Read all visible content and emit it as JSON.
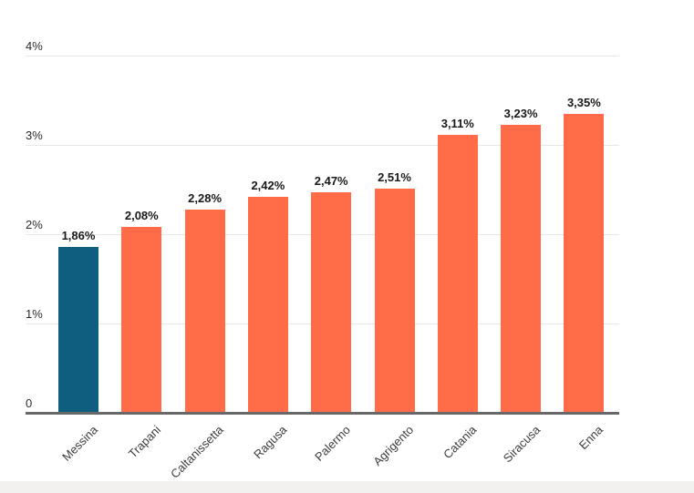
{
  "chart_data": {
    "type": "bar",
    "categories": [
      "Messina",
      "Trapani",
      "Caltanissetta",
      "Ragusa",
      "Palermo",
      "Agrigento",
      "Catania",
      "Siracusa",
      "Enna"
    ],
    "values": [
      1.86,
      2.08,
      2.28,
      2.42,
      2.47,
      2.51,
      3.11,
      3.23,
      3.35
    ],
    "value_labels": [
      "1,86%",
      "2,08%",
      "2,28%",
      "2,42%",
      "2,47%",
      "2,51%",
      "3,11%",
      "3,23%",
      "3,35%"
    ],
    "title": "",
    "xlabel": "",
    "ylabel": "",
    "y_axis": {
      "min": 0,
      "max": 4,
      "ticks": [
        {
          "label": "0",
          "value": 0
        },
        {
          "label": "1%",
          "value": 1
        },
        {
          "label": "2%",
          "value": 2
        },
        {
          "label": "3%",
          "value": 3
        },
        {
          "label": "4%",
          "value": 4
        }
      ]
    },
    "grid": true,
    "legend": false,
    "highlight_index": 0,
    "bar_colors": {
      "highlight": "#0f5e7f",
      "default": "#ff6c47"
    }
  },
  "colors": {
    "background": "#ffffff",
    "gridline": "#e7e7e7",
    "axis_line": "#686868",
    "value_label": "#191919",
    "tick_label": "#2b2b2b",
    "category_label": "#3d3d3d",
    "footer_strip": "#f3f1f0"
  }
}
